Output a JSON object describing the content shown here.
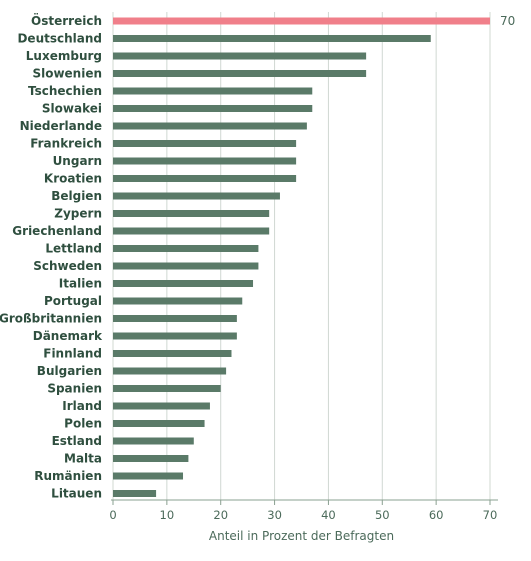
{
  "chart_data": {
    "type": "bar",
    "orientation": "horizontal",
    "categories": [
      "Österreich",
      "Deutschland",
      "Luxemburg",
      "Slowenien",
      "Tschechien",
      "Slowakei",
      "Niederlande",
      "Frankreich",
      "Ungarn",
      "Kroatien",
      "Belgien",
      "Zypern",
      "Griechenland",
      "Lettland",
      "Schweden",
      "Italien",
      "Portugal",
      "Großbritannien",
      "Dänemark",
      "Finnland",
      "Bulgarien",
      "Spanien",
      "Irland",
      "Polen",
      "Estland",
      "Malta",
      "Rumänien",
      "Litauen"
    ],
    "values": [
      70,
      59,
      47,
      47,
      37,
      37,
      36,
      34,
      34,
      34,
      31,
      29,
      29,
      27,
      27,
      26,
      24,
      23,
      23,
      22,
      21,
      20,
      18,
      17,
      15,
      14,
      13,
      8
    ],
    "highlight_index": 0,
    "data_labels": [
      {
        "index": 0,
        "text": "70"
      }
    ],
    "xlabel": "Anteil in Prozent der Befragten",
    "ylabel": "",
    "xlim": [
      0,
      70
    ],
    "xticks": [
      0,
      10,
      20,
      30,
      40,
      50,
      60,
      70
    ],
    "grid": "vertical",
    "colors": {
      "bar": "#5a7a68",
      "highlight": "#f07f8a",
      "grid": "#d0d8d2",
      "text": "#2f4f3f"
    }
  }
}
